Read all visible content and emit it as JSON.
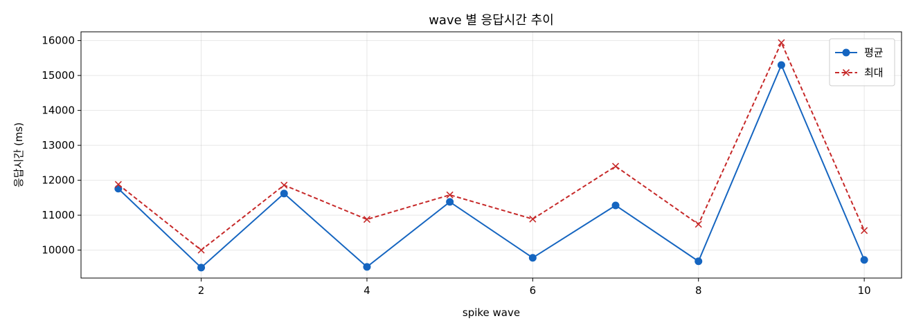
{
  "chart_data": {
    "type": "line",
    "title": "wave 별 응답시간 추이",
    "xlabel": "spike wave",
    "ylabel": "응답시간 (ms)",
    "x": [
      1,
      2,
      3,
      4,
      5,
      6,
      7,
      8,
      9,
      10
    ],
    "xlim": [
      0.55,
      10.45
    ],
    "ylim": [
      9200,
      16250
    ],
    "xticks": [
      2,
      4,
      6,
      8,
      10
    ],
    "yticks": [
      10000,
      11000,
      12000,
      13000,
      14000,
      15000,
      16000
    ],
    "grid": true,
    "legend_position": "top-right",
    "series": [
      {
        "name": "평균",
        "color": "#1565c0",
        "linestyle": "solid",
        "marker": "circle",
        "values": [
          11760,
          9500,
          11620,
          9520,
          11380,
          9780,
          11280,
          9680,
          15300,
          9720
        ]
      },
      {
        "name": "최대",
        "color": "#c62828",
        "linestyle": "dashed",
        "marker": "x",
        "values": [
          11880,
          10000,
          11860,
          10880,
          11580,
          10890,
          12400,
          10740,
          15940,
          10560
        ]
      }
    ]
  }
}
